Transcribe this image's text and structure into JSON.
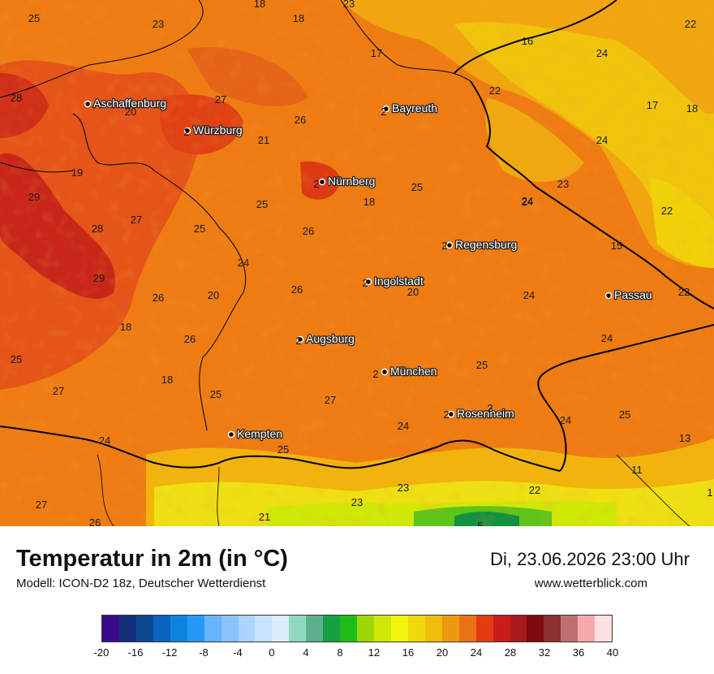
{
  "header": {
    "title": "Temperatur in 2m (in °C)",
    "model": "Modell: ICON-D2 18z, Deutscher Wetterdienst",
    "valid_time": "Di, 23.06.2026 23:00 Uhr",
    "website": "www.wetterblick.com"
  },
  "cities": [
    {
      "name": "Aschaffenburg"
    },
    {
      "name": "Würzburg"
    },
    {
      "name": "Bayreuth"
    },
    {
      "name": "Nürnberg"
    },
    {
      "name": "Regensburg"
    },
    {
      "name": "Ingolstadt"
    },
    {
      "name": "Passau"
    },
    {
      "name": "Augsburg"
    },
    {
      "name": "München"
    },
    {
      "name": "Rosenheim"
    },
    {
      "name": "Kempten"
    }
  ],
  "temperature_values": [
    "25",
    "23",
    "18",
    "18",
    "23",
    "28",
    "27",
    "20",
    "26",
    "21",
    "19",
    "29",
    "28",
    "27",
    "25",
    "29",
    "26",
    "20",
    "18",
    "26",
    "25",
    "18",
    "25",
    "27",
    "25",
    "17",
    "24",
    "16",
    "22",
    "24",
    "24",
    "17",
    "18",
    "22",
    "23",
    "26",
    "24",
    "25",
    "18",
    "25",
    "26",
    "20",
    "24",
    "24",
    "22",
    "15",
    "22",
    "24",
    "25",
    "27",
    "24",
    "24",
    "25",
    "24",
    "13",
    "11",
    "23",
    "22",
    "23",
    "21",
    "26",
    "27",
    "5",
    "1",
    "2",
    "2",
    "2",
    "2",
    "2",
    "2",
    "2",
    "2",
    "2"
  ],
  "legend": {
    "colors": [
      "#3a0a8c",
      "#14307a",
      "#0c4890",
      "#0b64c0",
      "#0b84e0",
      "#2698f5",
      "#66b4fa",
      "#8ac2fa",
      "#acd4fc",
      "#c8e4fd",
      "#dcecfd",
      "#90d8c0",
      "#5cb08e",
      "#16a040",
      "#22bc18",
      "#9cd808",
      "#cfe806",
      "#f2f50c",
      "#f1d80a",
      "#efbe0c",
      "#ed9a10",
      "#e97214",
      "#e53a12",
      "#c71c1a",
      "#a81a1e",
      "#7e0a0e",
      "#8c3030",
      "#c07070",
      "#f4aaaa",
      "#fde0e0"
    ],
    "ticks": [
      "-20",
      "-16",
      "-12",
      "-8",
      "-4",
      "0",
      "4",
      "8",
      "12",
      "16",
      "20",
      "24",
      "28",
      "32",
      "36",
      "40"
    ]
  }
}
